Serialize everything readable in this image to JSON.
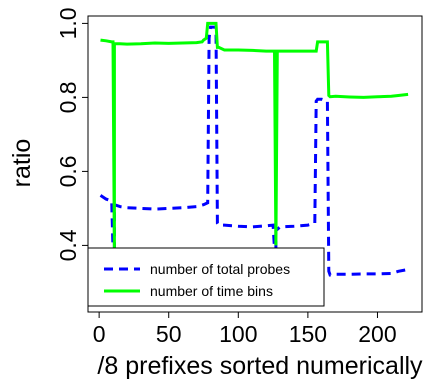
{
  "chart_data": {
    "type": "line",
    "xlabel": "/8 prefixes sorted numerically",
    "ylabel": "ratio",
    "xlim": [
      -8,
      232
    ],
    "ylim": [
      0.22,
      1.02
    ],
    "xticks": [
      0,
      50,
      100,
      150,
      200
    ],
    "xtick_labels": [
      "0",
      "50",
      "100",
      "150",
      "200"
    ],
    "yticks": [
      0.4,
      0.6,
      0.8,
      1.0
    ],
    "ytick_labels": [
      "0.4",
      "0.6",
      "0.8",
      "1.0"
    ],
    "grid": false,
    "legend_position": "bottom-left",
    "series": [
      {
        "name": "number of total probes",
        "color": "#0000ff",
        "style": "dashed",
        "x": [
          1,
          5,
          9,
          10,
          11,
          11,
          15,
          20,
          30,
          40,
          50,
          60,
          70,
          75,
          78,
          79,
          80,
          84,
          85,
          86,
          90,
          100,
          110,
          120,
          125,
          126,
          127,
          127,
          130,
          140,
          150,
          155,
          156,
          157,
          160,
          164,
          165,
          166,
          170,
          180,
          190,
          200,
          210,
          215,
          222
        ],
        "y": [
          0.535,
          0.525,
          0.52,
          0.39,
          0.39,
          0.51,
          0.505,
          0.502,
          0.5,
          0.498,
          0.5,
          0.502,
          0.505,
          0.51,
          0.515,
          0.96,
          0.99,
          0.99,
          0.46,
          0.455,
          0.455,
          0.452,
          0.45,
          0.453,
          0.455,
          0.39,
          0.39,
          0.44,
          0.45,
          0.452,
          0.455,
          0.46,
          0.79,
          0.795,
          0.795,
          0.79,
          0.33,
          0.32,
          0.322,
          0.322,
          0.323,
          0.323,
          0.324,
          0.33,
          0.335
        ]
      },
      {
        "name": "number of time bins",
        "color": "#00ff00",
        "style": "solid",
        "x": [
          1,
          5,
          9,
          10,
          11,
          11,
          15,
          20,
          30,
          40,
          50,
          60,
          70,
          74,
          75,
          77,
          78,
          84,
          85,
          86,
          90,
          100,
          110,
          120,
          125,
          126,
          127,
          128,
          130,
          140,
          150,
          156,
          157,
          160,
          164,
          165,
          166,
          170,
          180,
          190,
          200,
          210,
          215,
          222
        ],
        "y": [
          0.955,
          0.953,
          0.95,
          0.95,
          0.38,
          0.945,
          0.945,
          0.944,
          0.945,
          0.947,
          0.946,
          0.947,
          0.948,
          0.95,
          0.955,
          0.96,
          1.0,
          1.0,
          0.935,
          0.935,
          0.928,
          0.928,
          0.927,
          0.925,
          0.925,
          0.925,
          0.4,
          0.925,
          0.925,
          0.925,
          0.925,
          0.925,
          0.95,
          0.95,
          0.95,
          0.805,
          0.802,
          0.803,
          0.801,
          0.8,
          0.802,
          0.803,
          0.805,
          0.808
        ]
      }
    ]
  }
}
